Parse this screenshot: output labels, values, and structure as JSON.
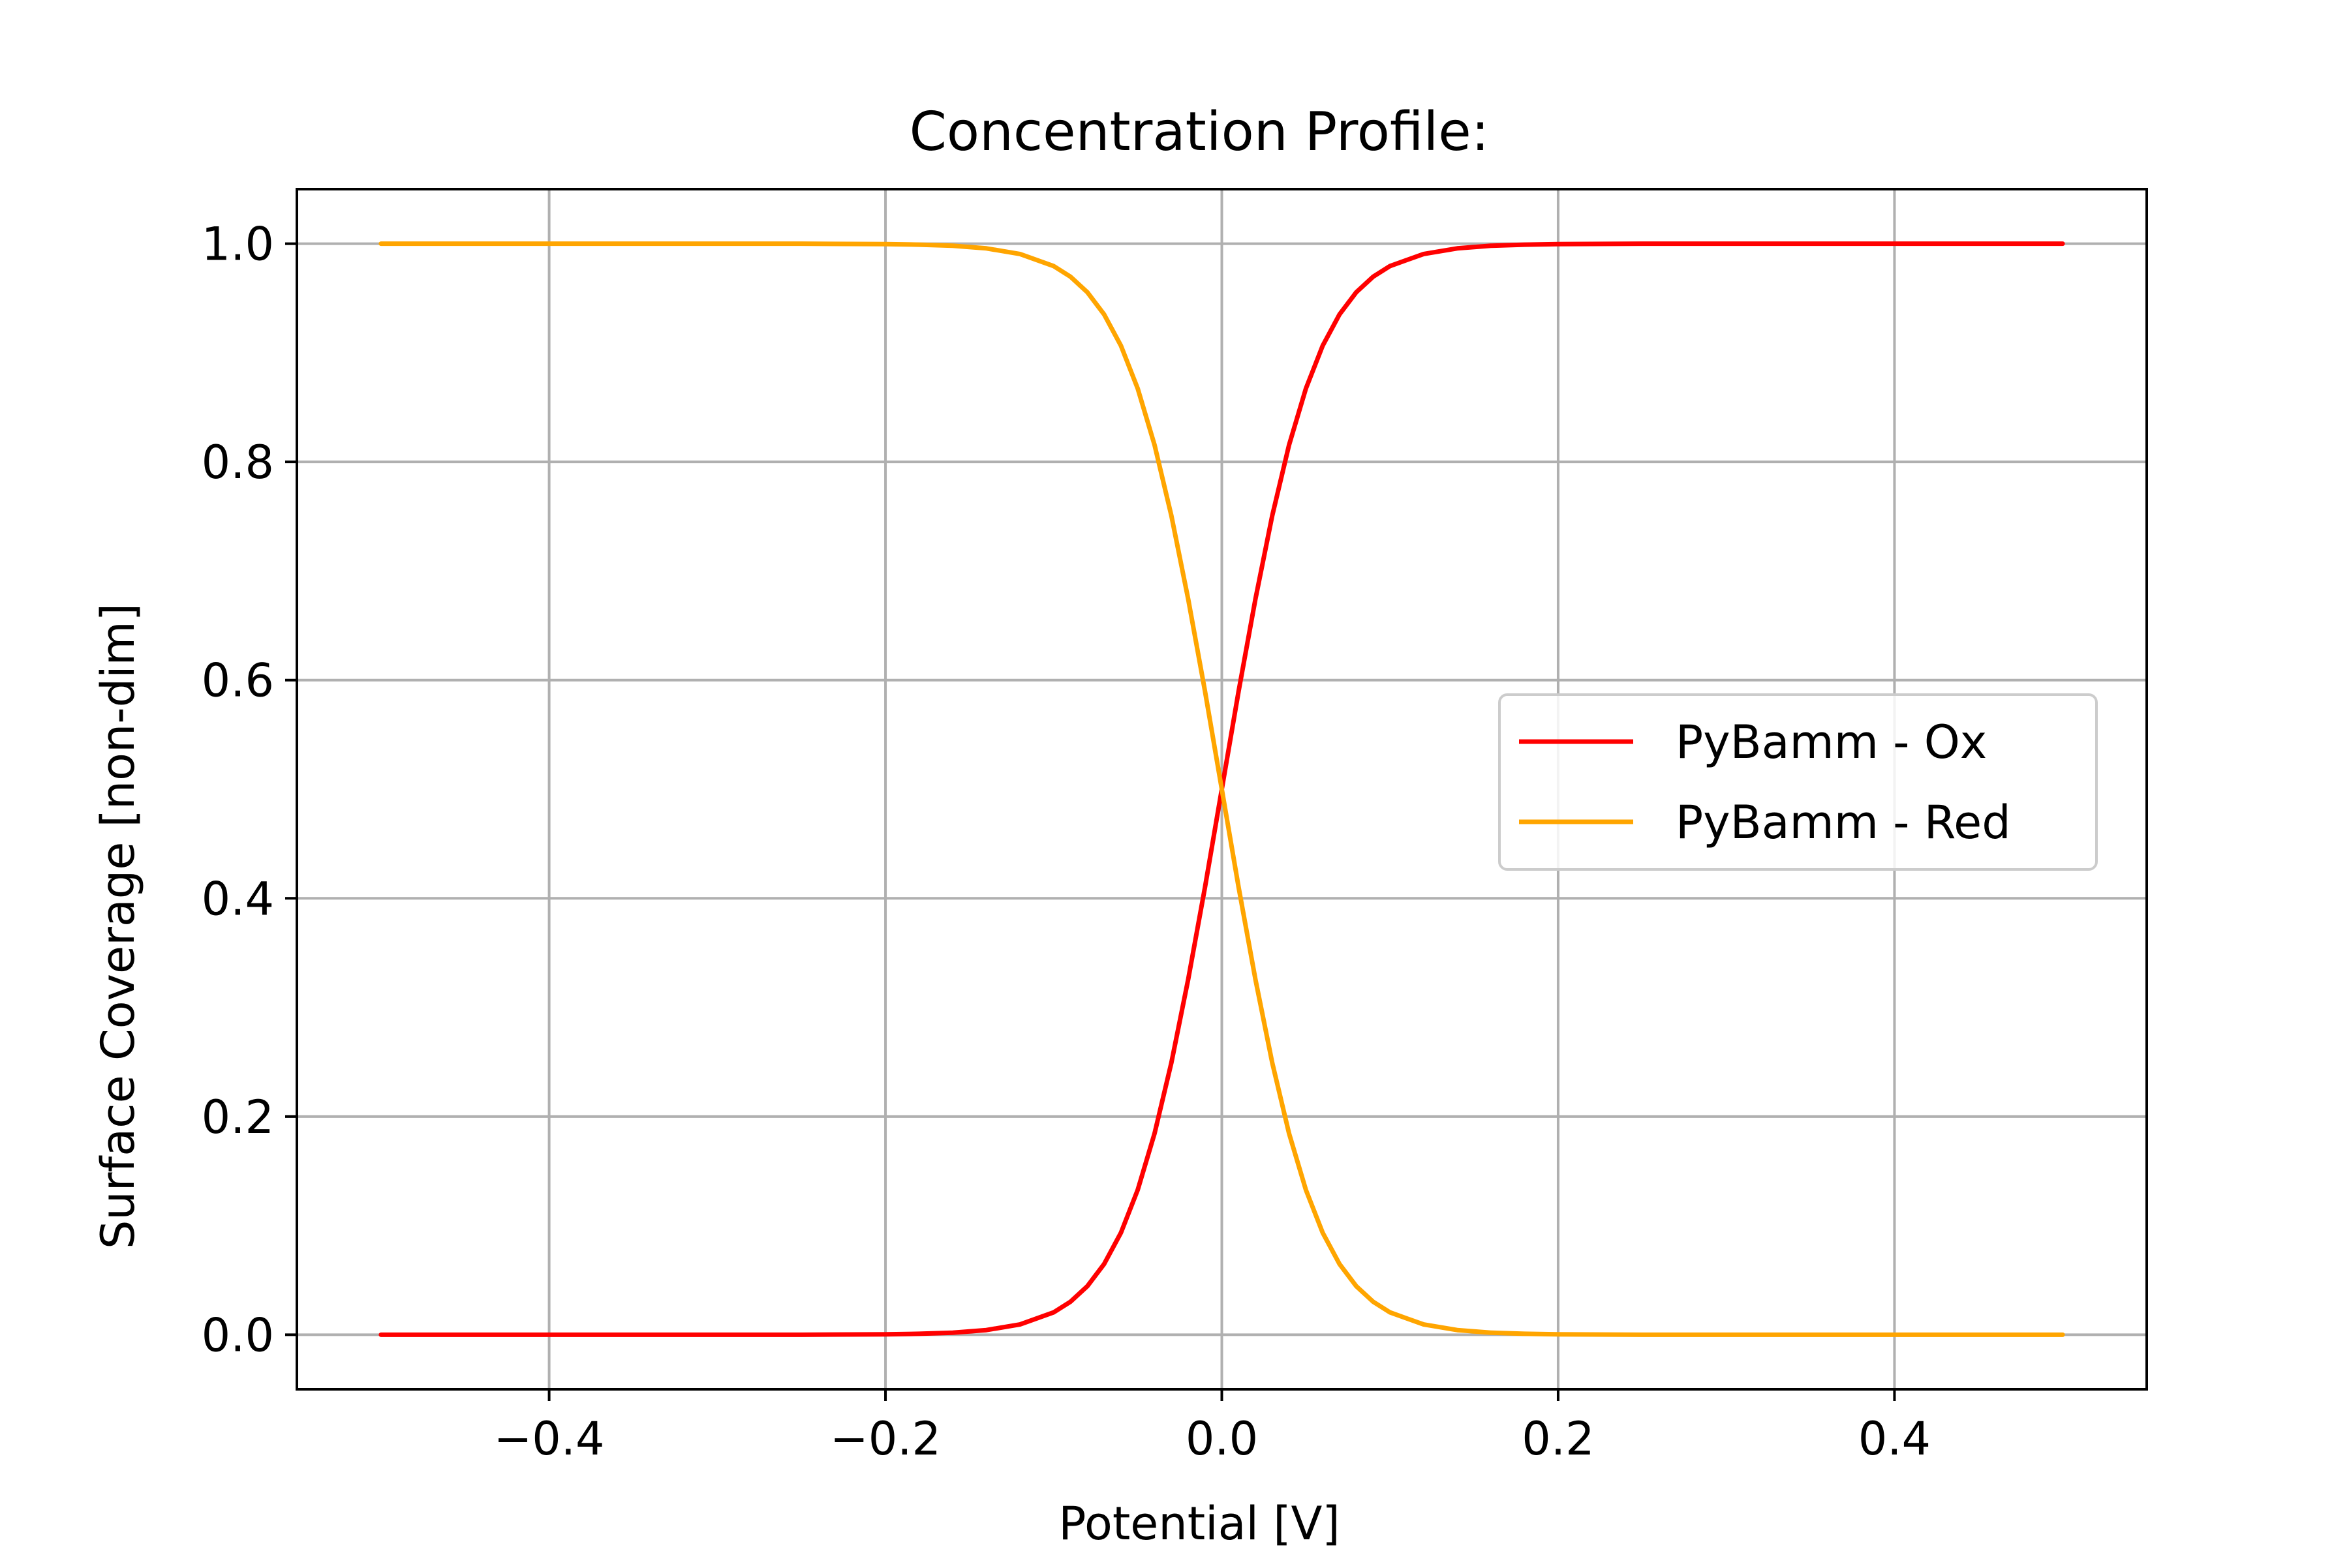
{
  "chart_data": {
    "type": "line",
    "title": "Concentration Profile:",
    "xlabel": "Potential [V]",
    "ylabel": "Surface Coverage [non-dim]",
    "xlim": [
      -0.55,
      0.55
    ],
    "ylim": [
      -0.05,
      1.05
    ],
    "xticks": [
      -0.4,
      -0.2,
      0.0,
      0.2,
      0.4
    ],
    "xtick_labels": [
      "−0.4",
      "−0.2",
      "0.0",
      "0.2",
      "0.4"
    ],
    "yticks": [
      0.0,
      0.2,
      0.4,
      0.6,
      0.8,
      1.0
    ],
    "ytick_labels": [
      "0.0",
      "0.2",
      "0.4",
      "0.6",
      "0.8",
      "1.0"
    ],
    "grid": true,
    "legend_position": "center-right",
    "series": [
      {
        "name": "PyBamm - Ox",
        "color": "#ff0000",
        "x": [
          -0.5,
          -0.45,
          -0.4,
          -0.35,
          -0.3,
          -0.25,
          -0.2,
          -0.18,
          -0.16,
          -0.14,
          -0.12,
          -0.1,
          -0.09,
          -0.08,
          -0.07,
          -0.06,
          -0.05,
          -0.04,
          -0.03,
          -0.02,
          -0.01,
          0.0,
          0.01,
          0.02,
          0.03,
          0.04,
          0.05,
          0.06,
          0.07,
          0.08,
          0.09,
          0.1,
          0.12,
          0.14,
          0.16,
          0.18,
          0.2,
          0.25,
          0.3,
          0.35,
          0.4,
          0.45,
          0.5
        ],
        "y": [
          0.0,
          0.0,
          0.0,
          0.0,
          0.0,
          0.0,
          0.0004,
          0.0009,
          0.0019,
          0.0043,
          0.0094,
          0.0205,
          0.0302,
          0.0444,
          0.0648,
          0.0935,
          0.1327,
          0.1844,
          0.2493,
          0.3258,
          0.41,
          0.5,
          0.59,
          0.6742,
          0.7507,
          0.8156,
          0.8673,
          0.9065,
          0.9352,
          0.9556,
          0.9698,
          0.9795,
          0.9906,
          0.9957,
          0.9981,
          0.9991,
          0.9996,
          1.0,
          1.0,
          1.0,
          1.0,
          1.0,
          1.0
        ]
      },
      {
        "name": "PyBamm - Red",
        "color": "#ffa500",
        "x": [
          -0.5,
          -0.45,
          -0.4,
          -0.35,
          -0.3,
          -0.25,
          -0.2,
          -0.18,
          -0.16,
          -0.14,
          -0.12,
          -0.1,
          -0.09,
          -0.08,
          -0.07,
          -0.06,
          -0.05,
          -0.04,
          -0.03,
          -0.02,
          -0.01,
          0.0,
          0.01,
          0.02,
          0.03,
          0.04,
          0.05,
          0.06,
          0.07,
          0.08,
          0.09,
          0.1,
          0.12,
          0.14,
          0.16,
          0.18,
          0.2,
          0.25,
          0.3,
          0.35,
          0.4,
          0.45,
          0.5
        ],
        "y": [
          1.0,
          1.0,
          1.0,
          1.0,
          1.0,
          1.0,
          0.9996,
          0.9991,
          0.9981,
          0.9957,
          0.9906,
          0.9795,
          0.9698,
          0.9556,
          0.9352,
          0.9065,
          0.8673,
          0.8156,
          0.7507,
          0.6742,
          0.59,
          0.5,
          0.41,
          0.3258,
          0.2493,
          0.1844,
          0.1327,
          0.0935,
          0.0648,
          0.0444,
          0.0302,
          0.0205,
          0.0094,
          0.0043,
          0.0019,
          0.0009,
          0.0004,
          0.0,
          0.0,
          0.0,
          0.0,
          0.0,
          0.0
        ]
      }
    ]
  }
}
